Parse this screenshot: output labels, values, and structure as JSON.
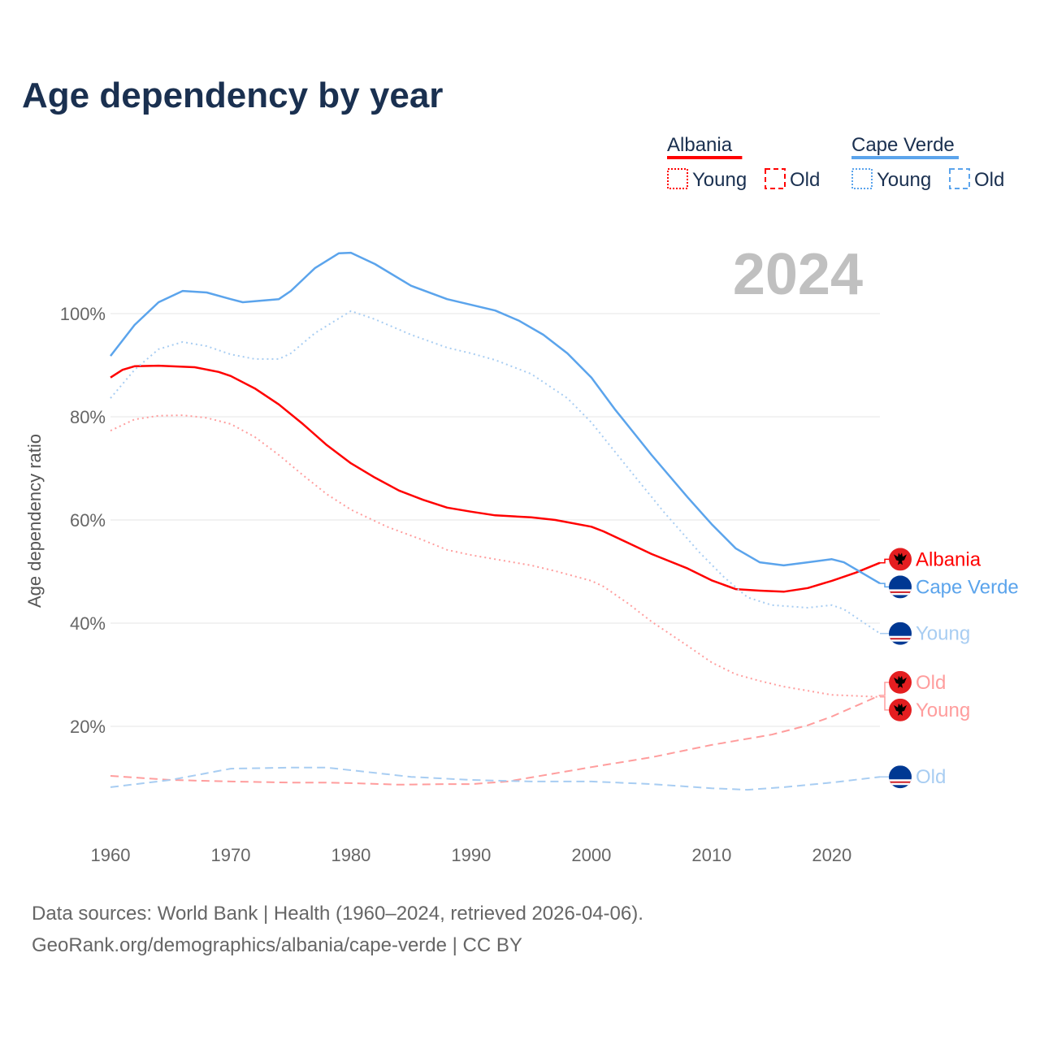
{
  "chart_data": {
    "type": "line",
    "title": "Age dependency by year",
    "ylabel": "Age dependency ratio",
    "xlabel": "",
    "year_watermark": "2024",
    "xlim": [
      1960,
      2024
    ],
    "ylim": [
      0,
      115
    ],
    "x_ticks": [
      1960,
      1970,
      1980,
      1990,
      2000,
      2010,
      2020
    ],
    "x_tick_labels": [
      "1960",
      "1970",
      "1980",
      "1990",
      "2000",
      "2010",
      "2020"
    ],
    "y_ticks": [
      20,
      40,
      60,
      80,
      100
    ],
    "y_tick_labels": [
      "20%",
      "40%",
      "60%",
      "80%",
      "100%"
    ],
    "grid": true,
    "legend": {
      "placement": "top-right",
      "groups": [
        {
          "country": "Albania",
          "color": "#ff0000",
          "items": [
            "Young",
            "Old"
          ]
        },
        {
          "country": "Cape Verde",
          "color": "#5ba4ec",
          "items": [
            "Young",
            "Old"
          ]
        }
      ]
    },
    "series": [
      {
        "name": "Albania",
        "label": "Albania",
        "country": "Albania",
        "style": "solid",
        "color": "#ff0000",
        "label_color": "#ff0000",
        "points": [
          [
            1960,
            87.6
          ],
          [
            1961,
            89.1
          ],
          [
            1962,
            89.8
          ],
          [
            1964,
            89.9
          ],
          [
            1967,
            89.6
          ],
          [
            1969,
            88.7
          ],
          [
            1970,
            87.9
          ],
          [
            1972,
            85.5
          ],
          [
            1974,
            82.4
          ],
          [
            1976,
            78.6
          ],
          [
            1978,
            74.5
          ],
          [
            1980,
            71.0
          ],
          [
            1982,
            68.2
          ],
          [
            1984,
            65.7
          ],
          [
            1986,
            63.9
          ],
          [
            1988,
            62.4
          ],
          [
            1990,
            61.6
          ],
          [
            1992,
            60.9
          ],
          [
            1995,
            60.5
          ],
          [
            1997,
            60.0
          ],
          [
            2000,
            58.7
          ],
          [
            2001,
            57.8
          ],
          [
            2003,
            55.6
          ],
          [
            2005,
            53.4
          ],
          [
            2008,
            50.6
          ],
          [
            2010,
            48.3
          ],
          [
            2012,
            46.6
          ],
          [
            2014,
            46.3
          ],
          [
            2016,
            46.1
          ],
          [
            2018,
            46.8
          ],
          [
            2020,
            48.2
          ],
          [
            2022,
            49.8
          ],
          [
            2024,
            51.7
          ]
        ]
      },
      {
        "name": "Cape Verde",
        "label": "Cape Verde",
        "country": "Cape Verde",
        "style": "solid",
        "color": "#5ba4ec",
        "label_color": "#5ba4ec",
        "points": [
          [
            1960,
            91.8
          ],
          [
            1962,
            97.8
          ],
          [
            1964,
            102.2
          ],
          [
            1966,
            104.4
          ],
          [
            1968,
            104.1
          ],
          [
            1970,
            102.8
          ],
          [
            1971,
            102.2
          ],
          [
            1974,
            102.8
          ],
          [
            1975,
            104.4
          ],
          [
            1977,
            108.8
          ],
          [
            1979,
            111.7
          ],
          [
            1980,
            111.8
          ],
          [
            1982,
            109.6
          ],
          [
            1985,
            105.4
          ],
          [
            1988,
            102.8
          ],
          [
            1990,
            101.7
          ],
          [
            1992,
            100.6
          ],
          [
            1994,
            98.6
          ],
          [
            1996,
            95.9
          ],
          [
            1998,
            92.3
          ],
          [
            2000,
            87.6
          ],
          [
            2002,
            81.3
          ],
          [
            2005,
            72.6
          ],
          [
            2008,
            64.4
          ],
          [
            2010,
            59.2
          ],
          [
            2012,
            54.5
          ],
          [
            2014,
            51.8
          ],
          [
            2016,
            51.2
          ],
          [
            2018,
            51.8
          ],
          [
            2020,
            52.4
          ],
          [
            2021,
            51.8
          ],
          [
            2024,
            47.7
          ]
        ]
      },
      {
        "name": "Cape Verde Young",
        "label": "Young",
        "country": "Cape Verde",
        "style": "dotted",
        "color": "#a8cdf2",
        "label_color": "#a8cdf2",
        "points": [
          [
            1960,
            83.6
          ],
          [
            1962,
            89.1
          ],
          [
            1964,
            93.1
          ],
          [
            1966,
            94.5
          ],
          [
            1968,
            93.7
          ],
          [
            1970,
            92.1
          ],
          [
            1972,
            91.2
          ],
          [
            1974,
            91.2
          ],
          [
            1975,
            92.3
          ],
          [
            1977,
            96.2
          ],
          [
            1980,
            100.5
          ],
          [
            1982,
            98.9
          ],
          [
            1985,
            95.9
          ],
          [
            1988,
            93.4
          ],
          [
            1990,
            92.3
          ],
          [
            1992,
            91.0
          ],
          [
            1995,
            88.3
          ],
          [
            1998,
            83.6
          ],
          [
            2000,
            78.9
          ],
          [
            2003,
            70.2
          ],
          [
            2006,
            61.6
          ],
          [
            2009,
            53.7
          ],
          [
            2011,
            49.0
          ],
          [
            2013,
            45.0
          ],
          [
            2015,
            43.5
          ],
          [
            2018,
            43.0
          ],
          [
            2020,
            43.5
          ],
          [
            2021,
            42.7
          ],
          [
            2024,
            38.0
          ]
        ]
      },
      {
        "name": "Albania Old",
        "label": "Old",
        "country": "Albania",
        "style": "dashed",
        "color": "#ff9d9d",
        "label_color": "#ff9d9d",
        "points": [
          [
            1960,
            10.4
          ],
          [
            1965,
            9.6
          ],
          [
            1970,
            9.3
          ],
          [
            1975,
            9.1
          ],
          [
            1978,
            9.1
          ],
          [
            1980,
            9.0
          ],
          [
            1984,
            8.7
          ],
          [
            1988,
            8.8
          ],
          [
            1990,
            8.8
          ],
          [
            1993,
            9.3
          ],
          [
            1995,
            10.1
          ],
          [
            2000,
            12.1
          ],
          [
            2005,
            14.0
          ],
          [
            2010,
            16.4
          ],
          [
            2012,
            17.2
          ],
          [
            2015,
            18.4
          ],
          [
            2018,
            20.2
          ],
          [
            2020,
            21.9
          ],
          [
            2024,
            26.0
          ]
        ]
      },
      {
        "name": "Albania Young",
        "label": "Young",
        "country": "Albania",
        "style": "dotted",
        "color": "#ff9d9d",
        "label_color": "#ff9d9d",
        "points": [
          [
            1960,
            77.3
          ],
          [
            1962,
            79.5
          ],
          [
            1964,
            80.2
          ],
          [
            1966,
            80.3
          ],
          [
            1968,
            79.8
          ],
          [
            1970,
            78.6
          ],
          [
            1972,
            76.1
          ],
          [
            1974,
            72.6
          ],
          [
            1976,
            68.7
          ],
          [
            1978,
            65.0
          ],
          [
            1980,
            62.0
          ],
          [
            1983,
            58.7
          ],
          [
            1986,
            56.1
          ],
          [
            1988,
            54.2
          ],
          [
            1990,
            53.2
          ],
          [
            1992,
            52.4
          ],
          [
            1995,
            51.2
          ],
          [
            1997,
            50.1
          ],
          [
            2000,
            48.2
          ],
          [
            2001,
            47.1
          ],
          [
            2003,
            43.9
          ],
          [
            2005,
            40.3
          ],
          [
            2008,
            35.6
          ],
          [
            2010,
            32.4
          ],
          [
            2012,
            30.1
          ],
          [
            2014,
            28.8
          ],
          [
            2016,
            27.7
          ],
          [
            2018,
            26.9
          ],
          [
            2020,
            26.1
          ],
          [
            2024,
            25.7
          ]
        ]
      },
      {
        "name": "Cape Verde Old",
        "label": "Old",
        "country": "Cape Verde",
        "style": "dashed",
        "color": "#a8cdf2",
        "label_color": "#a8cdf2",
        "points": [
          [
            1960,
            8.2
          ],
          [
            1965,
            9.6
          ],
          [
            1970,
            11.8
          ],
          [
            1975,
            12.0
          ],
          [
            1978,
            12.0
          ],
          [
            1980,
            11.5
          ],
          [
            1985,
            10.2
          ],
          [
            1990,
            9.6
          ],
          [
            1995,
            9.3
          ],
          [
            2000,
            9.3
          ],
          [
            2005,
            8.8
          ],
          [
            2010,
            8.0
          ],
          [
            2013,
            7.7
          ],
          [
            2016,
            8.2
          ],
          [
            2020,
            9.1
          ],
          [
            2024,
            10.2
          ]
        ]
      }
    ]
  },
  "footer": {
    "line1": "Data sources: World Bank | Health (1960–2024, retrieved 2026-04-06).",
    "line2": "GeoRank.org/demographics/albania/cape-verde | CC BY"
  }
}
